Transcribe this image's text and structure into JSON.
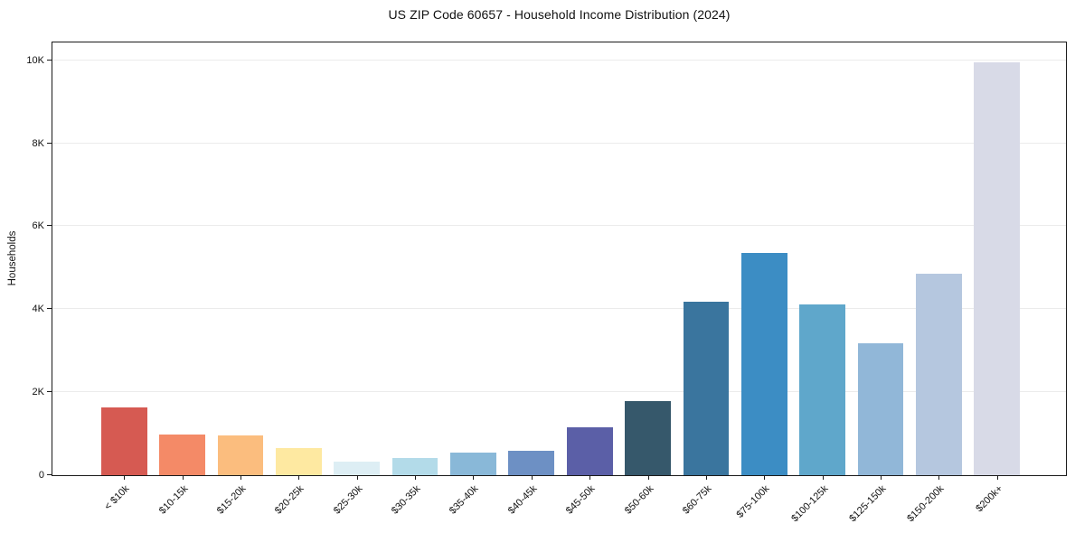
{
  "chart_data": {
    "type": "bar",
    "title": "US ZIP Code 60657 - Household Income Distribution (2024)",
    "xlabel": "",
    "ylabel": "Households",
    "categories": [
      "< $10k",
      "$10-15k",
      "$15-20k",
      "$20-25k",
      "$25-30k",
      "$30-35k",
      "$35-40k",
      "$40-45k",
      "$45-50k",
      "$50-60k",
      "$60-75k",
      "$75-100k",
      "$100-125k",
      "$125-150k",
      "$150-200k",
      "$200k+"
    ],
    "values": [
      1630,
      985,
      950,
      650,
      325,
      410,
      545,
      585,
      1150,
      1795,
      4180,
      5350,
      4120,
      3170,
      4850,
      9950
    ],
    "bar_colors": [
      "#d65a52",
      "#f48a67",
      "#fbbd7e",
      "#fee9a1",
      "#ddeef4",
      "#b3dbe9",
      "#89b8d8",
      "#6d90c4",
      "#5b5fa7",
      "#36586b",
      "#3a759e",
      "#3c8dc4",
      "#5fa7cb",
      "#91b7d8",
      "#b5c7df",
      "#d8dae7"
    ],
    "ytick_values": [
      0,
      2000,
      4000,
      6000,
      8000,
      10000
    ],
    "ytick_labels": [
      "0",
      "2K",
      "4K",
      "6K",
      "8K",
      "10K"
    ],
    "ylim": [
      0,
      10430
    ],
    "grid": "horizontal",
    "gridline_color": "#ebebeb",
    "axis_color": "#1a1a1a",
    "background": "#ffffff",
    "xtick_rotation": 45,
    "legend": "none"
  }
}
